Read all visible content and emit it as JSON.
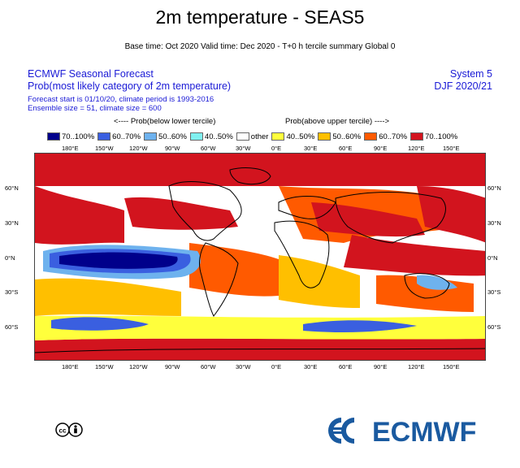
{
  "title": "2m temperature - SEAS5",
  "basetime": "Base time: Oct 2020 Valid time: Dec 2020 - T+0 h tercile summary Global 0",
  "header_left": {
    "line1": "ECMWF Seasonal Forecast",
    "line2": "Prob(most likely category of 2m temperature)",
    "line3": "Forecast start is 01/10/20, climate period is 1993-2016",
    "line4": "Ensemble size = 51, climate size = 600"
  },
  "header_right": {
    "line1": "System 5",
    "line2": "DJF 2020/21"
  },
  "legend": {
    "caption_left": "<---- Prob(below lower tercile)",
    "caption_right": "Prob(above upper tercile) ---->",
    "items": [
      {
        "label": "70..100%",
        "color": "#00008b"
      },
      {
        "label": "60..70%",
        "color": "#3a5fe0"
      },
      {
        "label": "50..60%",
        "color": "#6eb2ee"
      },
      {
        "label": "40..50%",
        "color": "#7ff0ef"
      },
      {
        "label": "other",
        "color": "#ffffff"
      },
      {
        "label": "40..50%",
        "color": "#ffff3c"
      },
      {
        "label": "50..60%",
        "color": "#ffbf00"
      },
      {
        "label": "60..70%",
        "color": "#ff5a00"
      },
      {
        "label": "70..100%",
        "color": "#d2141e"
      }
    ]
  },
  "map": {
    "lon_labels": [
      "180°E",
      "150°W",
      "120°W",
      "90°W",
      "60°W",
      "30°W",
      "0°E",
      "30°E",
      "60°E",
      "90°E",
      "120°E",
      "150°E"
    ],
    "lat_labels": [
      "60°N",
      "30°N",
      "0°N",
      "30°S",
      "60°S"
    ]
  },
  "footer": {
    "license_icon": "creative-commons-by-icon",
    "logo_text": "ECMWF",
    "logo_color": "#1a5aa0"
  }
}
